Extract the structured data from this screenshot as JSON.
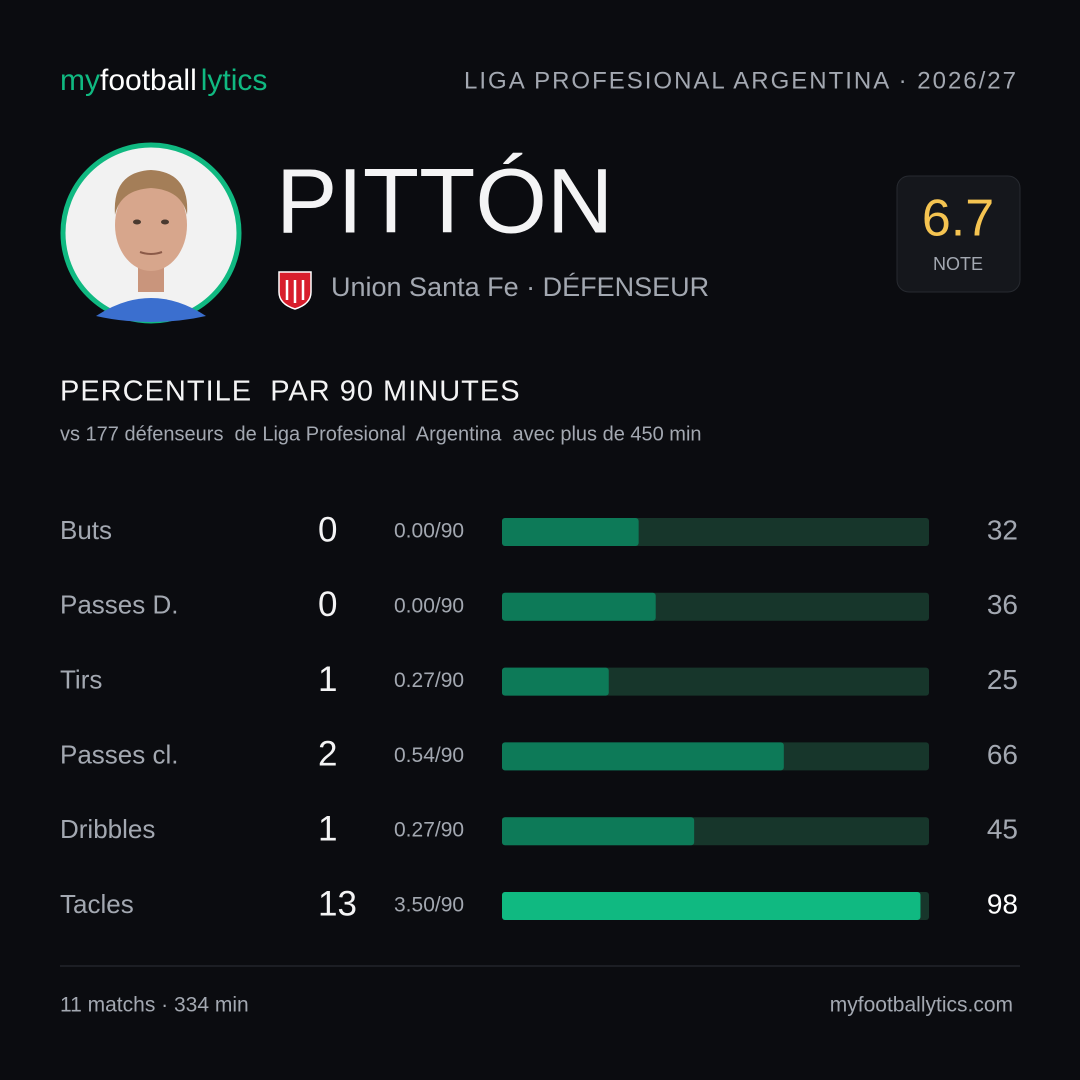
{
  "brand": {
    "parts": [
      "my",
      "football",
      "lytics"
    ]
  },
  "league": "LIGA PROFESIONAL ARGENTINA · 2026/27",
  "player": {
    "name": "PITTÓN",
    "team": "Union Santa Fe · DÉFENSEUR"
  },
  "rating": {
    "value": "6.7",
    "label": "NOTE"
  },
  "section": {
    "title": "PERCENTILE  PAR 90 MINUTES",
    "subtitle": "vs 177 défenseurs  de Liga Profesional  Argentina  avec plus de 450 min"
  },
  "stats": {
    "xlim": [
      0,
      100
    ],
    "bar_color": "#0d7a58",
    "highlight_color": "#10b981",
    "track_color": "#17362b",
    "rows": [
      {
        "label": "Buts",
        "total": "0",
        "per90": "0.00/90",
        "percentile": 32,
        "highlight": false
      },
      {
        "label": "Passes D.",
        "total": "0",
        "per90": "0.00/90",
        "percentile": 36,
        "highlight": false
      },
      {
        "label": "Tirs",
        "total": "1",
        "per90": "0.27/90",
        "percentile": 25,
        "highlight": false
      },
      {
        "label": "Passes cl.",
        "total": "2",
        "per90": "0.54/90",
        "percentile": 66,
        "highlight": false
      },
      {
        "label": "Dribbles",
        "total": "1",
        "per90": "0.27/90",
        "percentile": 45,
        "highlight": false
      },
      {
        "label": "Tacles",
        "total": "13",
        "per90": "3.50/90",
        "percentile": 98,
        "highlight": true
      }
    ]
  },
  "footer": {
    "left": "11 matchs · 334 min",
    "right": "myfootballytics.com"
  }
}
